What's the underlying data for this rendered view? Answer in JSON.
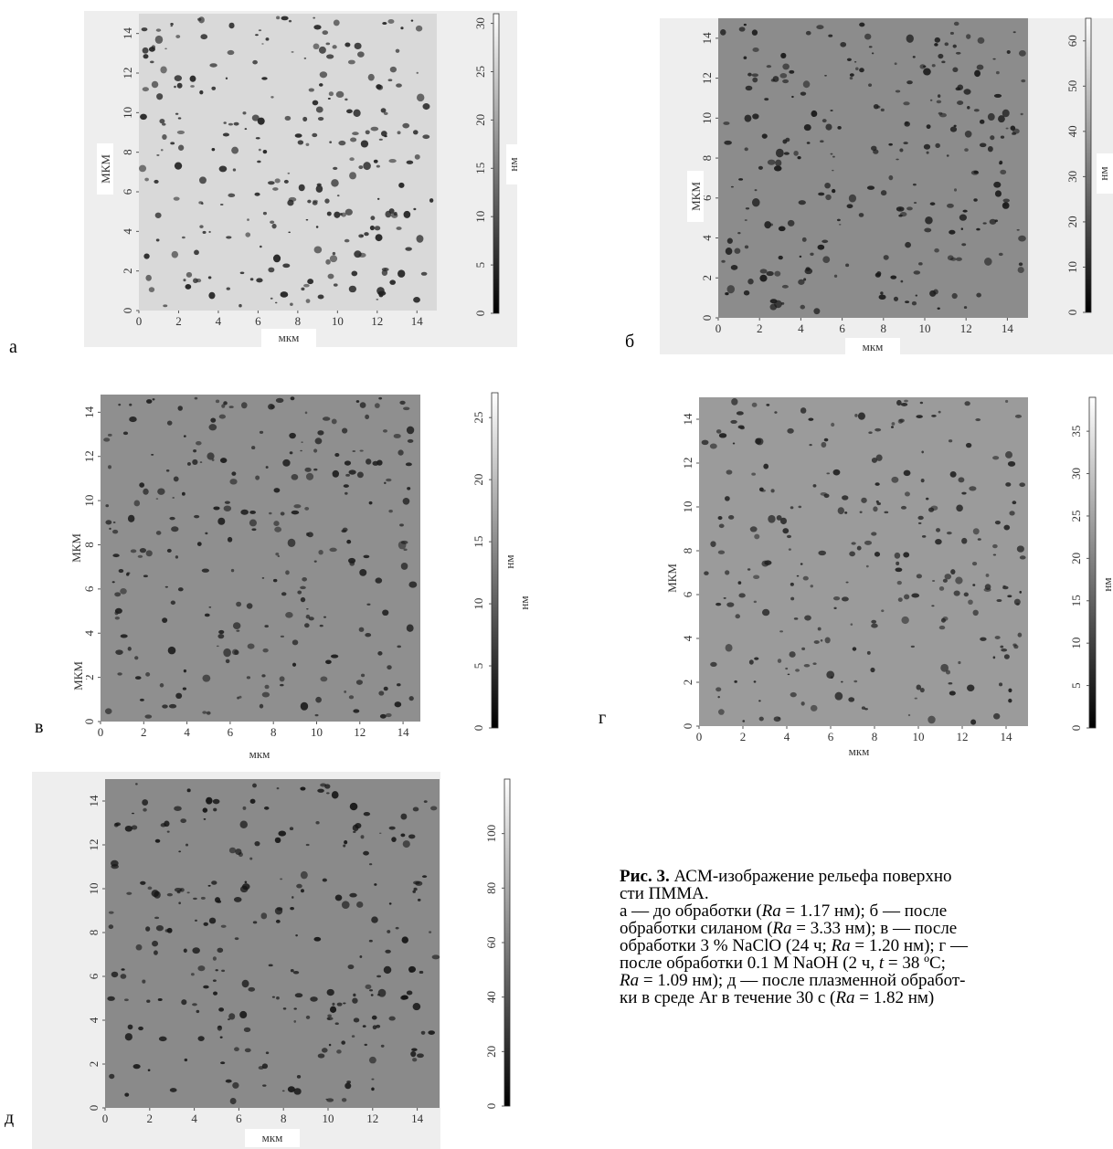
{
  "panels": [
    {
      "label": "а",
      "xlabel": "мкм",
      "ylabel": "МКМ",
      "image_color": "#d9d9d9",
      "pore_color": "#222",
      "xlim": [
        0,
        15
      ],
      "ylim": [
        0,
        15
      ],
      "xticks": [
        0,
        2,
        4,
        6,
        8,
        10,
        12,
        14
      ],
      "yticks": [
        0,
        2,
        4,
        6,
        8,
        10,
        12,
        14
      ],
      "colorbar": {
        "unit": "нм",
        "lim": [
          0,
          31
        ],
        "ticks": [
          0,
          5,
          10,
          15,
          20,
          25,
          30
        ]
      }
    },
    {
      "label": "б",
      "xlabel": "мкм",
      "ylabel": "МКМ",
      "image_color": "#8c8c8c",
      "pore_color": "#1a1a1a",
      "xlim": [
        0,
        15
      ],
      "ylim": [
        0,
        15
      ],
      "xticks": [
        0,
        2,
        4,
        6,
        8,
        10,
        12,
        14
      ],
      "yticks": [
        0,
        2,
        4,
        6,
        8,
        10,
        12,
        14
      ],
      "colorbar": {
        "unit": "нм",
        "lim": [
          0,
          65
        ],
        "ticks": [
          0,
          10,
          20,
          30,
          40,
          50,
          60
        ]
      }
    },
    {
      "label": "в",
      "xlabel": "мкм",
      "ylabel": "МКМ",
      "image_color": "#8f8f8f",
      "pore_color": "#1e1e1e",
      "xlim": [
        0,
        14.8
      ],
      "ylim": [
        0,
        14.8
      ],
      "xticks": [
        0,
        2,
        4,
        6,
        8,
        10,
        12,
        14
      ],
      "yticks": [
        0,
        2,
        4,
        6,
        8,
        10,
        12,
        14
      ],
      "colorbar": {
        "unit": "нм",
        "lim": [
          0,
          27
        ],
        "ticks": [
          0,
          5,
          10,
          15,
          20,
          25
        ]
      }
    },
    {
      "label": "г",
      "xlabel": "мкм",
      "ylabel": "МКМ",
      "image_color": "#9b9b9b",
      "pore_color": "#222",
      "xlim": [
        0,
        15
      ],
      "ylim": [
        0,
        15
      ],
      "xticks": [
        0,
        2,
        4,
        6,
        8,
        10,
        12,
        14
      ],
      "yticks": [
        0,
        2,
        4,
        6,
        8,
        10,
        12,
        14
      ],
      "colorbar": {
        "unit": "нм",
        "lim": [
          0,
          39
        ],
        "ticks": [
          0,
          5,
          10,
          15,
          20,
          25,
          30,
          35
        ]
      }
    },
    {
      "label": "д",
      "xlabel": "мкм",
      "ylabel": "МКМ",
      "image_color": "#8a8a8a",
      "pore_color": "#151515",
      "xlim": [
        0,
        15
      ],
      "ylim": [
        0,
        15
      ],
      "xticks": [
        0,
        2,
        4,
        6,
        8,
        10,
        12,
        14
      ],
      "yticks": [
        0,
        2,
        4,
        6,
        8,
        10,
        12,
        14
      ],
      "colorbar": {
        "unit": "нм",
        "lim": [
          0,
          120
        ],
        "ticks": [
          0,
          20,
          40,
          60,
          80,
          100
        ]
      }
    }
  ],
  "caption": {
    "lines": [
      [
        {
          "text": "Рис. 3.",
          "bold": true
        },
        {
          "text": " АСМ-изображение рельефа поверхно"
        }
      ],
      [
        {
          "text": "сти ПММА."
        }
      ],
      [
        {
          "text": "а — до обработки ("
        },
        {
          "text": "Ra",
          "italic": true
        },
        {
          "text": " = 1.17 нм); б — после"
        }
      ],
      [
        {
          "text": "обработки силаном ("
        },
        {
          "text": "Ra",
          "italic": true
        },
        {
          "text": " = 3.33 нм); в — после"
        }
      ],
      [
        {
          "text": "обработки 3 % NaClO (24 ч; "
        },
        {
          "text": "Ra",
          "italic": true
        },
        {
          "text": " = 1.20 нм); г —"
        }
      ],
      [
        {
          "text": "после обработки 0.1 M NaOH (2 ч, "
        },
        {
          "text": "t",
          "italic": true
        },
        {
          "text": " = 38 ºC;"
        }
      ],
      [
        {
          "text": "Ra",
          "italic": true
        },
        {
          "text": " = 1.09 нм); д — после плазменной обработ-"
        }
      ],
      [
        {
          "text": "ки в среде Ar в течение 30 с ("
        },
        {
          "text": "Ra",
          "italic": true
        },
        {
          "text": " = 1.82 нм)"
        }
      ]
    ]
  }
}
